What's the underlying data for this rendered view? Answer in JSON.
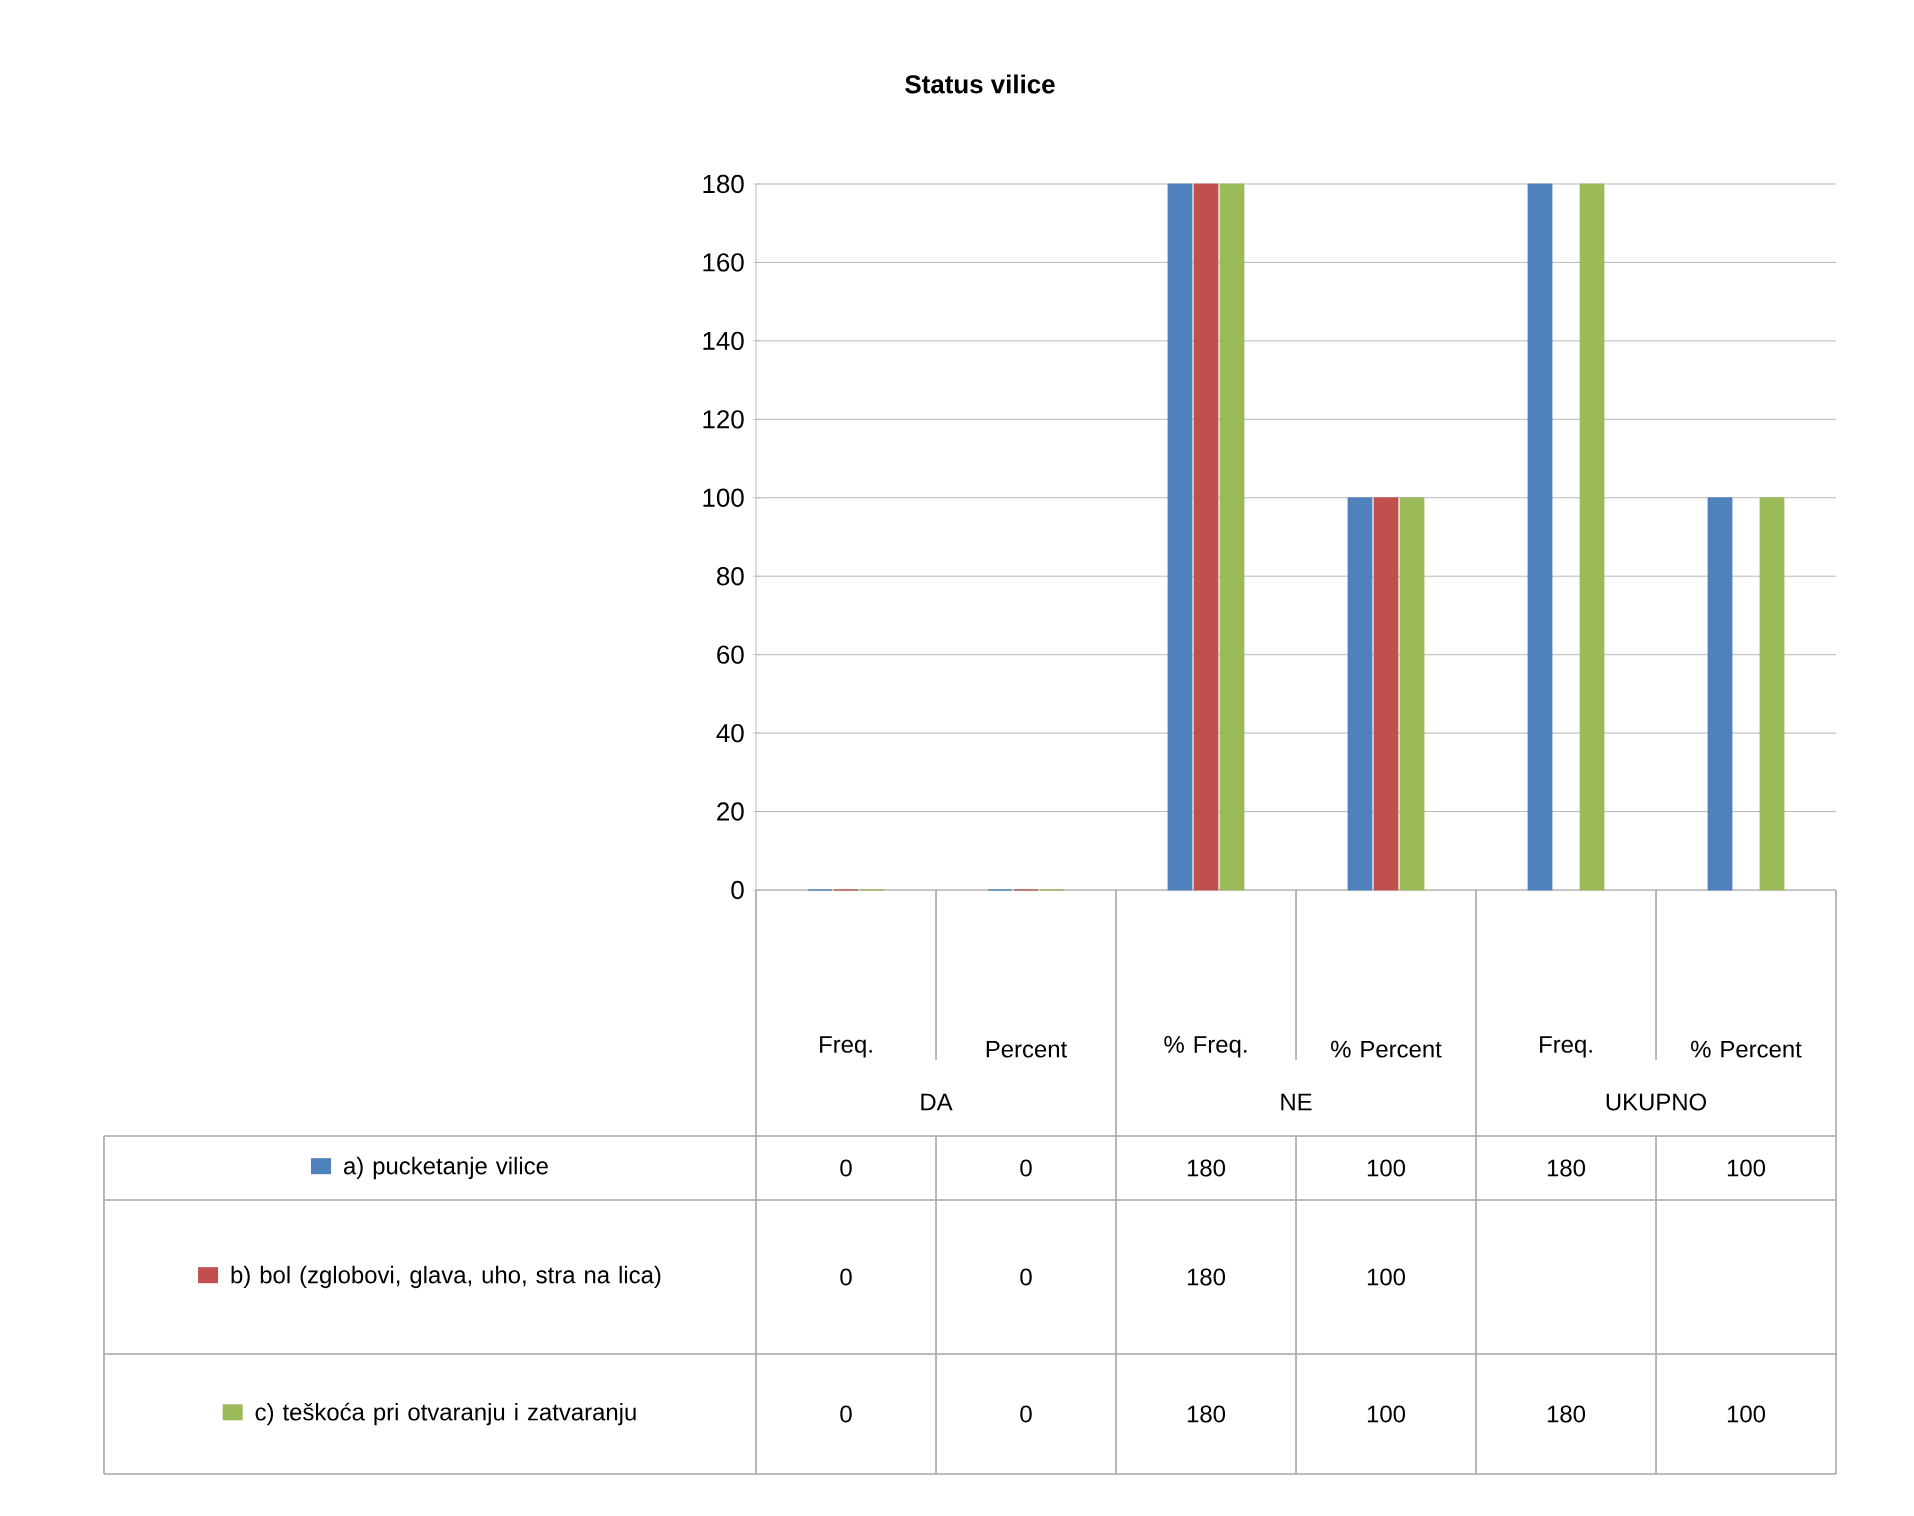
{
  "chart_data": {
    "type": "bar",
    "title": "Status vilice",
    "categories": [
      "Freq.",
      "Percent",
      "% Freq.",
      "% Percent",
      "Freq.",
      "% Percent"
    ],
    "series": [
      {
        "name": "a)  pucketanje vilice",
        "color": "#4f81bd",
        "values": [
          0,
          0,
          180,
          100,
          180,
          100
        ]
      },
      {
        "name": "b)  bol (zglobovi, glava, uho, stra na lica)",
        "color": "#c0504d",
        "values": [
          0,
          0,
          180,
          100,
          null,
          null
        ]
      },
      {
        "name": "c)  teškoća pri otvaranju i zatvaranju",
        "color": "#9bbb59",
        "values": [
          0,
          0,
          180,
          100,
          180,
          100
        ]
      }
    ],
    "annotations": [
      "DA",
      "NE",
      "UKUPNO"
    ],
    "ylim": [
      0,
      180
    ],
    "yticks": [
      0,
      20,
      40,
      60,
      80,
      100,
      120,
      140,
      160,
      180
    ],
    "grid": "y",
    "data_labels": true,
    "legend": "bottom"
  }
}
